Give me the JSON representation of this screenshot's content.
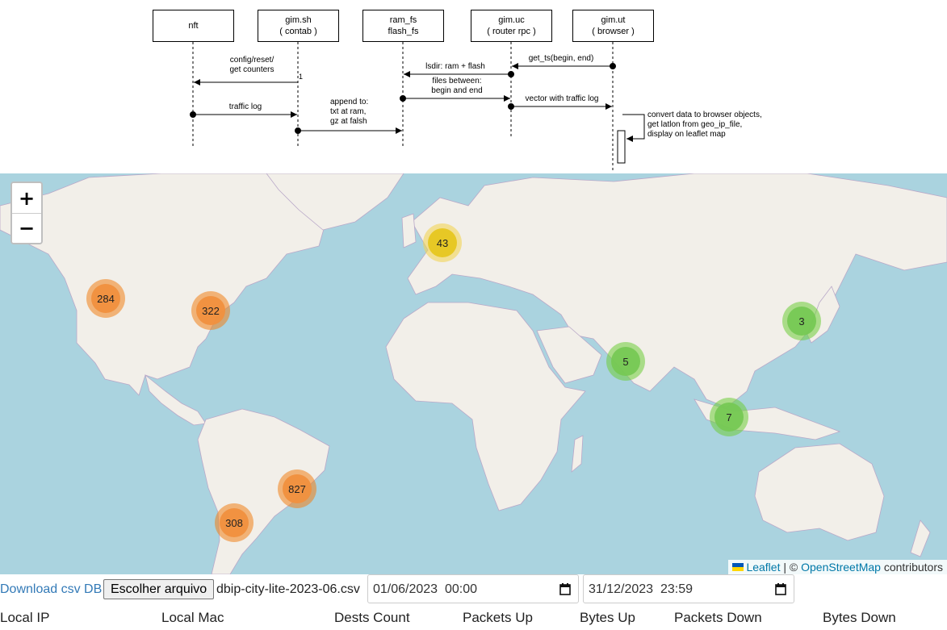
{
  "diagram": {
    "actors": [
      {
        "line1": "nft",
        "line2": ""
      },
      {
        "line1": "gim.sh",
        "line2": "( contab )"
      },
      {
        "line1": "ram_fs",
        "line2": "flash_fs"
      },
      {
        "line1": "gim.uc",
        "line2": "( router rpc )"
      },
      {
        "line1": "gim.ut",
        "line2": "( browser )"
      }
    ],
    "messages": {
      "config_1": "config/reset/",
      "config_2": "get counters",
      "activation_mark": "1",
      "traffic_log": "traffic log",
      "append_1": "append to:",
      "append_2": "txt at ram,",
      "append_3": "gz at falsh",
      "get_ts": "get_ts(begin, end)",
      "lsdir": "lsdir: ram + flash",
      "files_1": "files between:",
      "files_2": "begin and end",
      "vector": "vector with traffic log",
      "convert_1": "convert data to browser objects,",
      "convert_2": "get latlon from geo_ip_file,",
      "convert_3": "display on leaflet map"
    }
  },
  "map": {
    "zoom_in": "+",
    "zoom_out": "−",
    "clusters": [
      {
        "count": "284",
        "color": "orange"
      },
      {
        "count": "322",
        "color": "orange"
      },
      {
        "count": "43",
        "color": "yellow"
      },
      {
        "count": "3",
        "color": "green"
      },
      {
        "count": "5",
        "color": "green"
      },
      {
        "count": "7",
        "color": "green"
      },
      {
        "count": "827",
        "color": "orange"
      },
      {
        "count": "308",
        "color": "orange"
      }
    ],
    "attribution": {
      "leaflet": "Leaflet",
      "sep": " | © ",
      "osm": "OpenStreetMap",
      "suffix": " contributors"
    },
    "colors": {
      "water": "#aad3df",
      "land": "#f2efe9",
      "border": "#b9a8c8"
    }
  },
  "controls": {
    "download_link": "Download csv DB",
    "file_button": "Escolher arquivo",
    "file_name": "dbip-city-lite-2023-06.csv",
    "date_from": "01/06/2023  00:00",
    "date_to": "31/12/2023  23:59"
  },
  "table": {
    "headers": [
      "Local IP",
      "Local Mac",
      "Dests Count",
      "Packets Up",
      "Bytes Up",
      "Packets Down",
      "Bytes Down"
    ]
  }
}
